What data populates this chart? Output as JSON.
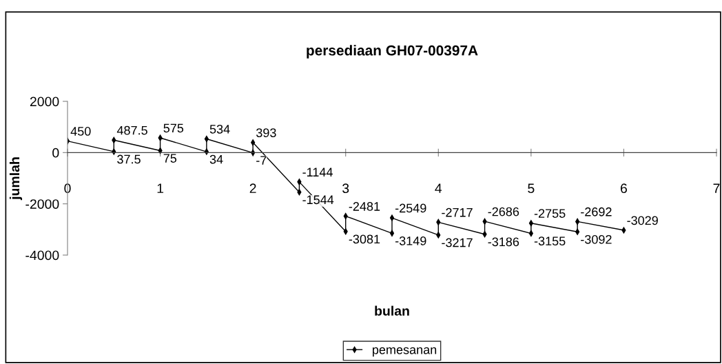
{
  "chart_data": {
    "type": "line",
    "title": "persediaan GH07-00397A",
    "xlabel": "bulan",
    "ylabel": "jumlah",
    "x": [
      0,
      0.5,
      0.5,
      1,
      1,
      1.5,
      1.5,
      2,
      2,
      2.5,
      2.5,
      3,
      3,
      3.5,
      3.5,
      4,
      4,
      4.5,
      4.5,
      5,
      5,
      5.5,
      5.5,
      6
    ],
    "series": [
      {
        "name": "pemesanan",
        "color": "#000000",
        "values": [
          450,
          37.5,
          487.5,
          75,
          575,
          34,
          534,
          -7,
          393,
          -1544,
          -1144,
          -3081,
          -2481,
          -3149,
          -2549,
          -3217,
          -2717,
          -3186,
          -2686,
          -3155,
          -2755,
          -3092,
          -2692,
          -3029
        ]
      }
    ],
    "xlim": [
      0,
      7
    ],
    "xticks": [
      0,
      1,
      2,
      3,
      4,
      5,
      6,
      7
    ],
    "ylim": [
      -4000,
      2000
    ],
    "yticks": [
      -4000,
      -2000,
      0,
      2000
    ],
    "data_labels": true,
    "legend": "bottom",
    "grid": false,
    "marker": "diamond",
    "line_style": "solid"
  }
}
